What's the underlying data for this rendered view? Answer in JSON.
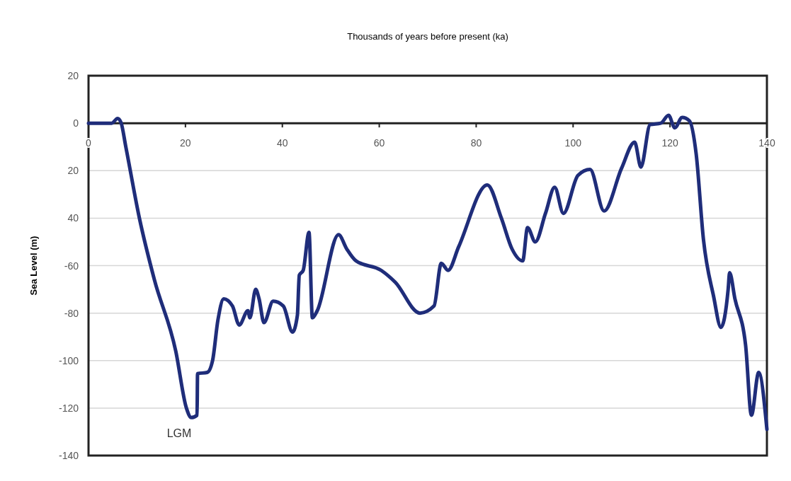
{
  "chart_data": {
    "type": "line",
    "xlabel": "Thousands of years before present (ka)",
    "ylabel": "Sea Level (m)",
    "xlim": [
      0,
      140
    ],
    "xticks": [
      0,
      20,
      40,
      60,
      80,
      100,
      120,
      140
    ],
    "ylim": [
      -140,
      20
    ],
    "yticks": [
      20,
      0,
      {
        "value": -20,
        "label": "20"
      },
      {
        "value": -40,
        "label": "40"
      },
      -60,
      -80,
      -100,
      -120,
      -140
    ],
    "grid": "y",
    "marker": "none",
    "line_style": "solid",
    "annotations": [
      "LGM"
    ],
    "series": [
      {
        "color": "#1f2d7a",
        "x": [
          0,
          4.8,
          6,
          6.7,
          7.7,
          10.5,
          13.6,
          18,
          20.2,
          21.2,
          22.4,
          22.5,
          24.5,
          25.6,
          26.7,
          27.9,
          29.7,
          31.1,
          32.9,
          33.3,
          34.5,
          35.2,
          36.2,
          38.1,
          40.2,
          42.1,
          43.1,
          43.5,
          44.3,
          45.5,
          46.2,
          47.2,
          51.6,
          53.3,
          55.2,
          60.4,
          63.3,
          68.4,
          71.3,
          72.8,
          74.2,
          76.4,
          82.3,
          85.2,
          87.4,
          89.6,
          90.6,
          92.2,
          94.3,
          96.2,
          98,
          101,
          103.5,
          106.4,
          110,
          112.7,
          114,
          115.9,
          118.1,
          119.7,
          121,
          122.5,
          124,
          125.4,
          126.9,
          129,
          130.5,
          132,
          132.3,
          133.4,
          135.6,
          136.8,
          138.3,
          140
        ],
        "values": [
          0,
          0,
          2,
          0.3,
          -10,
          -40,
          -66,
          -96,
          -120,
          -124,
          -123,
          -105.5,
          -105,
          -100,
          -83,
          -74,
          -77,
          -85,
          -79,
          -82,
          -70,
          -74,
          -84,
          -75,
          -77,
          -88,
          -81,
          -64,
          -62,
          -46,
          -82,
          -79,
          -47,
          -53,
          -58,
          -62,
          -67,
          -80,
          -77,
          -59,
          -62,
          -52,
          -26,
          -40,
          -53,
          -58,
          -44,
          -50,
          -38,
          -27,
          -38,
          -22,
          -19.5,
          -37,
          -19,
          -8,
          -18.5,
          -0.6,
          0,
          3.3,
          -2,
          2.4,
          1,
          -13,
          -49,
          -73,
          -86,
          -70,
          -63,
          -74,
          -93.5,
          -123,
          -105,
          -129
        ]
      }
    ]
  }
}
